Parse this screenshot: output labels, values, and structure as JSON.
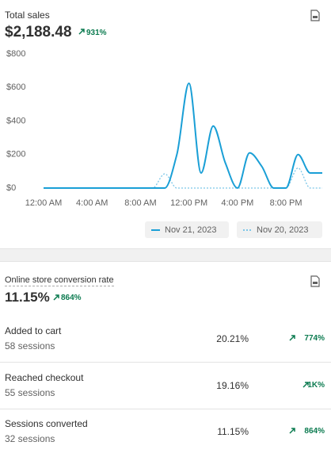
{
  "total_sales": {
    "title": "Total sales",
    "value": "$2,188.48",
    "change": "931%"
  },
  "chart_data": {
    "type": "line",
    "categories": [
      "12:00 AM",
      null,
      null,
      null,
      "4:00 AM",
      null,
      null,
      null,
      "8:00 AM",
      null,
      null,
      null,
      "12:00 PM",
      null,
      null,
      null,
      "4:00 PM",
      null,
      null,
      null,
      "8:00 PM",
      null,
      null,
      null
    ],
    "series": [
      {
        "name": "Nov 21, 2023",
        "color": "#1a9fd6",
        "dash": false,
        "values": [
          0,
          0,
          0,
          0,
          0,
          0,
          0,
          0,
          0,
          0,
          0,
          200,
          625,
          90,
          370,
          150,
          0,
          210,
          130,
          0,
          0,
          200,
          90,
          90
        ]
      },
      {
        "name": "Nov 20, 2023",
        "color": "#7cc6e8",
        "dash": true,
        "values": [
          0,
          0,
          0,
          0,
          0,
          0,
          0,
          0,
          0,
          0,
          85,
          0,
          0,
          0,
          0,
          0,
          0,
          0,
          0,
          0,
          0,
          120,
          0,
          0
        ]
      }
    ],
    "ylim": [
      0,
      800
    ],
    "yticks": [
      {
        "value": 0,
        "label": "$0"
      },
      {
        "value": 200,
        "label": "$200"
      },
      {
        "value": 400,
        "label": "$400"
      },
      {
        "value": 600,
        "label": "$600"
      },
      {
        "value": 800,
        "label": "$800"
      }
    ],
    "grid": false
  },
  "conversion": {
    "title": "Online store conversion rate",
    "value": "11.15%",
    "change": "864%",
    "rows": [
      {
        "label": "Added to cart",
        "sessions": "58 sessions",
        "rate": "20.21%",
        "change": "774%"
      },
      {
        "label": "Reached checkout",
        "sessions": "55 sessions",
        "rate": "19.16%",
        "change": "1K%"
      },
      {
        "label": "Sessions converted",
        "sessions": "32 sessions",
        "rate": "11.15%",
        "change": "864%"
      }
    ]
  }
}
